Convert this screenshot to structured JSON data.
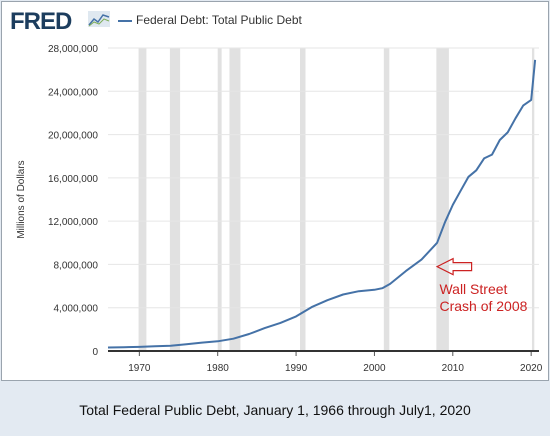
{
  "header": {
    "logo_text": "FRED",
    "logo_icon": "fred-chart-logo-icon"
  },
  "chart_data": {
    "type": "line",
    "ylabel": "Millions of Dollars",
    "xlim": [
      1966,
      2021
    ],
    "ylim": [
      0,
      28000000
    ],
    "yticks": [
      0,
      4000000,
      8000000,
      12000000,
      16000000,
      20000000,
      24000000,
      28000000
    ],
    "ytick_labels": [
      "0",
      "4,000,000",
      "8,000,000",
      "12,000,000",
      "16,000,000",
      "20,000,000",
      "24,000,000",
      "28,000,000"
    ],
    "xticks": [
      1970,
      1980,
      1990,
      2000,
      2010,
      2020
    ],
    "xtick_labels": [
      "1970",
      "1980",
      "1990",
      "2000",
      "2010",
      "2020"
    ],
    "grid": "horizontal",
    "legend": "top-left",
    "recessions": [
      [
        1969.9,
        1970.9
      ],
      [
        1973.9,
        1975.2
      ],
      [
        1980.0,
        1980.5
      ],
      [
        1981.5,
        1982.9
      ],
      [
        1990.5,
        1991.2
      ],
      [
        2001.2,
        2001.9
      ],
      [
        2007.9,
        2009.5
      ],
      [
        2020.1,
        2020.4
      ]
    ],
    "series": [
      {
        "name": "Federal Debt: Total Public Debt",
        "color": "#4572a7",
        "x": [
          1966,
          1968,
          1970,
          1972,
          1974,
          1976,
          1978,
          1980,
          1982,
          1984,
          1986,
          1988,
          1990,
          1992,
          1994,
          1996,
          1998,
          2000,
          2001,
          2002,
          2004,
          2006,
          2008,
          2009,
          2010,
          2011,
          2012,
          2013,
          2014,
          2015,
          2016,
          2017,
          2018,
          2019,
          2020,
          2020.25,
          2020.5
        ],
        "values": [
          320000,
          350000,
          380000,
          430000,
          480000,
          620000,
          780000,
          900000,
          1140000,
          1570000,
          2120000,
          2600000,
          3200000,
          4060000,
          4690000,
          5220000,
          5530000,
          5660000,
          5800000,
          6200000,
          7380000,
          8450000,
          10000000,
          11900000,
          13500000,
          14800000,
          16100000,
          16700000,
          17800000,
          18150000,
          19500000,
          20200000,
          21500000,
          22700000,
          23200000,
          25000000,
          26900000
        ]
      }
    ],
    "annotation": {
      "text_lines": [
        "Wall Street",
        "Crash of 2008"
      ],
      "color": "#cc2222",
      "arrow_from": [
        2012.4,
        7800000
      ],
      "arrow_to": [
        2008.0,
        7800000
      ],
      "text_anchor": [
        2008.3,
        5250000
      ]
    }
  },
  "caption": "Total Federal Public Debt, January 1, 1966 through July1, 2020"
}
